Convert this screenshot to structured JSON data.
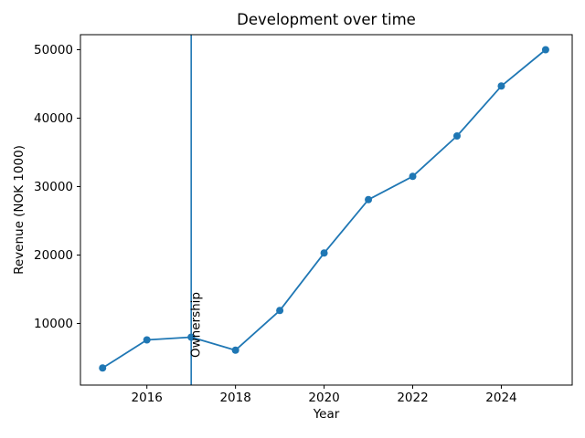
{
  "chart_data": {
    "type": "line",
    "title": "Development over time",
    "xlabel": "Year",
    "ylabel": "Revenue (NOK 1000)",
    "x": [
      2015,
      2016,
      2017,
      2018,
      2019,
      2020,
      2021,
      2022,
      2023,
      2024,
      2025
    ],
    "series": [
      {
        "name": "Revenue",
        "values": [
          3500,
          7600,
          8000,
          6100,
          11900,
          20300,
          28100,
          31500,
          37400,
          44700,
          50000
        ]
      }
    ],
    "xticks": [
      2016,
      2018,
      2020,
      2022,
      2024
    ],
    "yticks": [
      10000,
      20000,
      30000,
      40000,
      50000
    ],
    "xlim": [
      2014.5,
      2025.6
    ],
    "ylim": [
      1000,
      52200
    ],
    "grid": false,
    "legend": "none",
    "line_color": "#1f77b4",
    "marker": "circle",
    "marker_color": "#1f77b4",
    "axis_color": "#000000",
    "background_color": "#ffffff",
    "annotation": {
      "label": "Ownership",
      "x": 2017,
      "y": 5000,
      "line_color": "#1f77b4",
      "text_color": "#000000"
    }
  }
}
